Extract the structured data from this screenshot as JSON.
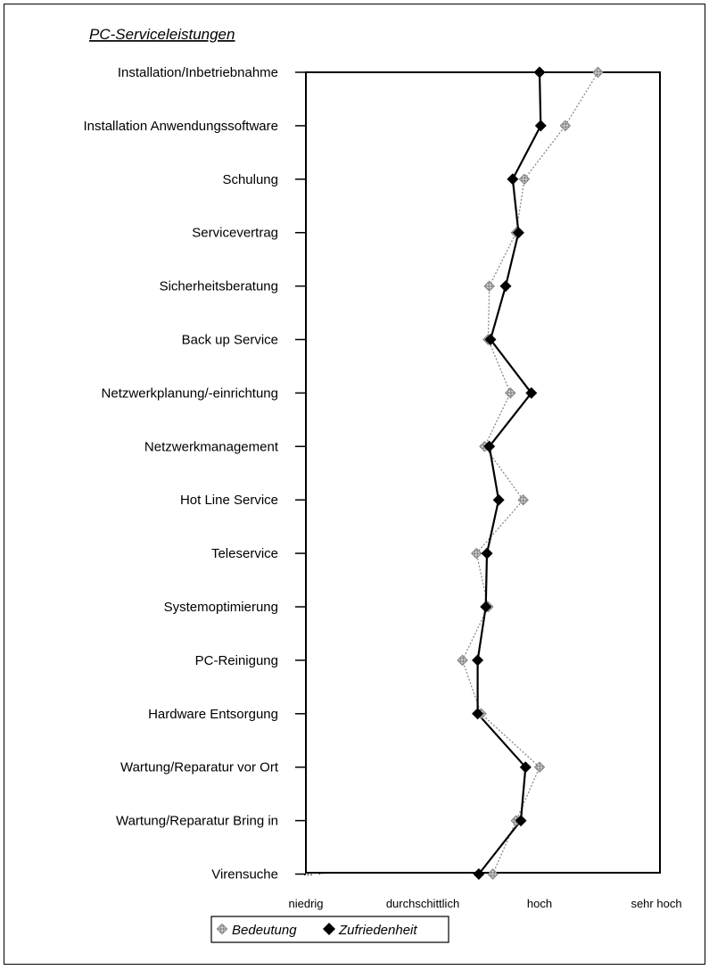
{
  "chart_data": {
    "type": "line",
    "orientation": "horizontal",
    "title": "PC-Serviceleistungen",
    "categories": [
      "Installation/Inbetriebnahme",
      "Installation Anwendungssoftware",
      "Schulung",
      "Servicevertrag",
      "Sicherheitsberatung",
      "Back up Service",
      "Netzwerkplanung/-einrichtung",
      "Netzwerkmanagement",
      "Hot Line Service",
      "Teleservice",
      "Systemoptimierung",
      "PC-Reinigung",
      "Hardware Entsorgung",
      "Wartung/Reparatur vor Ort",
      "Wartung/Reparatur Bring in",
      "Virensuche"
    ],
    "value_axis": {
      "ticks": [
        "niedrig",
        "durchschittlich",
        "hoch",
        "sehr hoch"
      ],
      "range": [
        1,
        4
      ]
    },
    "series": [
      {
        "name": "Bedeutung",
        "color": "#8a8a8a",
        "marker": "dotted-square",
        "style": "dotted",
        "values": [
          3.5,
          3.22,
          2.87,
          2.8,
          2.57,
          2.56,
          2.75,
          2.53,
          2.86,
          2.46,
          2.56,
          2.34,
          2.5,
          3.0,
          2.8,
          2.6
        ]
      },
      {
        "name": "Zufriedenheit",
        "color": "#000000",
        "marker": "diamond",
        "style": "solid",
        "values": [
          3.0,
          3.01,
          2.77,
          2.82,
          2.71,
          2.58,
          2.93,
          2.57,
          2.65,
          2.55,
          2.54,
          2.47,
          2.47,
          2.88,
          2.84,
          2.48
        ]
      }
    ],
    "annotation": "... ←",
    "legend": {
      "position": "bottom",
      "entries": [
        "Bedeutung",
        "Zufriedenheit"
      ]
    },
    "grid": false
  }
}
